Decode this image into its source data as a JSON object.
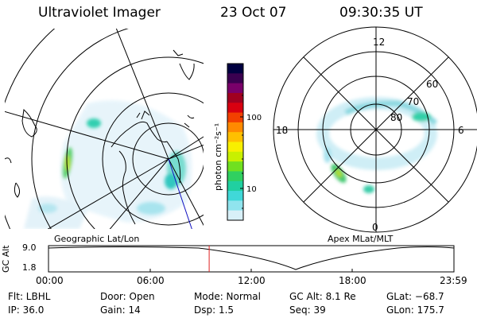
{
  "header": {
    "instrument": "Ultraviolet Imager",
    "date": "23 Oct 07",
    "time": "09:30:35 UT"
  },
  "left_panel": {
    "caption": "Geographic Lat/Lon"
  },
  "right_panel": {
    "caption": "Apex MLat/MLT",
    "mlt_labels": [
      "12",
      "6",
      "0",
      "18"
    ],
    "lat_labels": [
      "60",
      "70",
      "80"
    ]
  },
  "colorbar": {
    "unit_label": "photon cm⁻²s⁻¹",
    "ticks": [
      "100",
      "10"
    ],
    "colors": [
      "#000040",
      "#3a0050",
      "#7a006a",
      "#a00020",
      "#d80010",
      "#f24000",
      "#ff8a00",
      "#ffc000",
      "#f8f000",
      "#c8f000",
      "#70e020",
      "#30d060",
      "#20d0a0",
      "#40d8d8",
      "#90e4ee",
      "#d8f0f8"
    ]
  },
  "altitude_plot": {
    "ylabel": "GC Alt",
    "y_ticks": [
      "9.0",
      "1.8"
    ],
    "x_ticks": [
      "00:00",
      "06:00",
      "12:00",
      "18:00",
      "23:59"
    ],
    "current_time_fraction": 0.3962,
    "marker_color": "#e02020"
  },
  "status": {
    "filter": "Flt: LBHL",
    "ip": "IP: 36.0",
    "door": "Door: Open",
    "gain": "Gain: 14",
    "mode": "Mode: Normal",
    "dsp": "Dsp:     1.5",
    "gc_alt": "GC Alt: 8.1 Re",
    "seq": "Seq: 39",
    "glat": "GLat: −68.7",
    "glon": "GLon: 175.7"
  }
}
